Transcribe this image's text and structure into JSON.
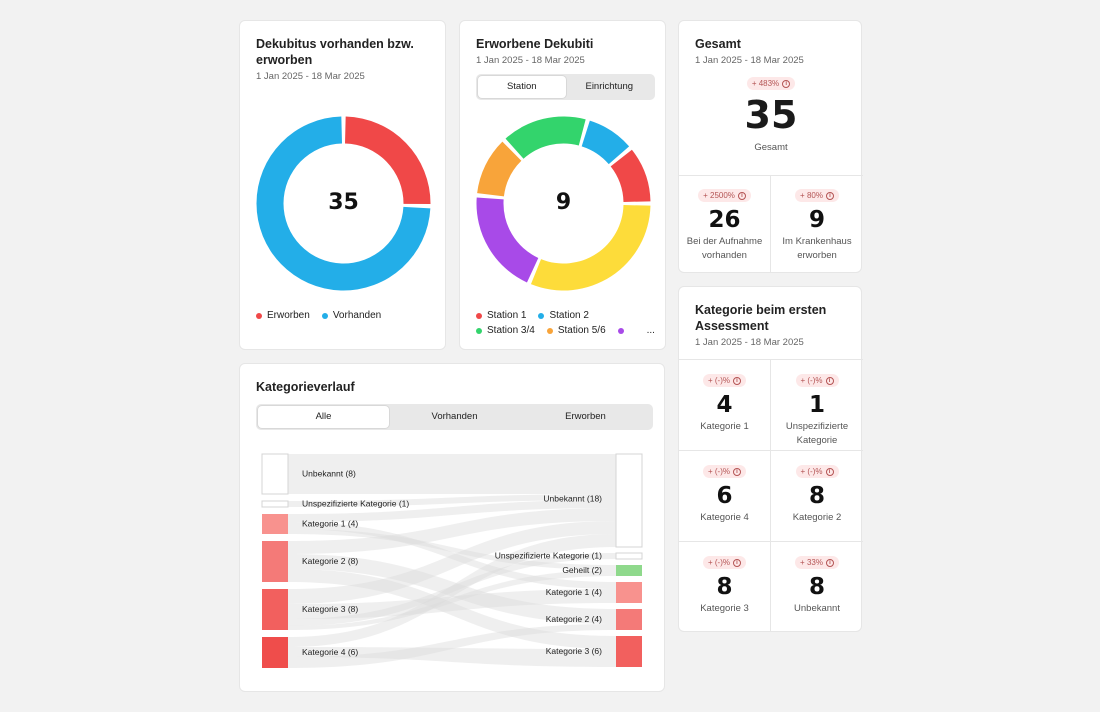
{
  "card1": {
    "title": "Dekubitus vorhanden bzw. erworben",
    "subtitle": "1 Jan 2025 - 18 Mar 2025",
    "center": "35",
    "legend": [
      {
        "label": "Erworben",
        "color": "#f04848"
      },
      {
        "label": "Vorhanden",
        "color": "#23aee8"
      }
    ]
  },
  "card2": {
    "title": "Erworbene Dekubiti",
    "subtitle": "1 Jan 2025 - 18 Mar 2025",
    "tabs": [
      "Station",
      "Einrichtung"
    ],
    "center": "9",
    "legend": [
      {
        "label": "Station 1",
        "color": "#f04848"
      },
      {
        "label": "Station 2",
        "color": "#23aee8"
      },
      {
        "label": "Station 3/4",
        "color": "#33d46c"
      },
      {
        "label": "Station 5/6",
        "color": "#f8a43a"
      },
      {
        "label": "",
        "color": "#a84ae8"
      }
    ],
    "legend_more": "..."
  },
  "gesamt": {
    "title": "Gesamt",
    "subtitle": "1 Jan 2025 - 18 Mar 2025",
    "badge": "+ 483%",
    "value": "35",
    "label": "Gesamt",
    "cells": [
      {
        "badge": "+ 2500%",
        "value": "26",
        "label": "Bei der Aufnahme vorhanden"
      },
      {
        "badge": "+ 80%",
        "value": "9",
        "label": "Im Krankenhaus erworben"
      }
    ]
  },
  "kategorie": {
    "title": "Kategorie beim ersten Assessment",
    "subtitle": "1 Jan 2025 - 18 Mar 2025",
    "cells": [
      {
        "badge": "+ (-)%",
        "value": "4",
        "label": "Kategorie 1"
      },
      {
        "badge": "+ (-)%",
        "value": "1",
        "label": "Unspezifizierte Kategorie"
      },
      {
        "badge": "+ (-)%",
        "value": "6",
        "label": "Kategorie 4"
      },
      {
        "badge": "+ (-)%",
        "value": "8",
        "label": "Kategorie 2"
      },
      {
        "badge": "+ (-)%",
        "value": "8",
        "label": "Kategorie 3"
      },
      {
        "badge": "+ 33%",
        "value": "8",
        "label": "Unbekannt"
      }
    ]
  },
  "verlauf": {
    "title": "Kategorieverlauf",
    "tabs": [
      "Alle",
      "Vorhanden",
      "Erworben"
    ],
    "left_nodes": [
      "Unbekannt (8)",
      "Unspezifizierte Kategorie (1)",
      "Kategorie 1 (4)",
      "Kategorie 2 (8)",
      "Kategorie 3 (8)",
      "Kategorie 4 (6)"
    ],
    "right_nodes": [
      "Unbekannt (18)",
      "Unspezifizierte Kategorie (1)",
      "Geheilt (2)",
      "Kategorie 1 (4)",
      "Kategorie 2 (4)",
      "Kategorie 3 (6)"
    ]
  },
  "colors": {
    "red": "#f04848",
    "blue": "#23aee8",
    "green": "#33d46c",
    "orange": "#f8a43a",
    "purple": "#a84ae8",
    "yellow": "#fddc3a"
  },
  "icons": [
    "info-icon"
  ]
}
